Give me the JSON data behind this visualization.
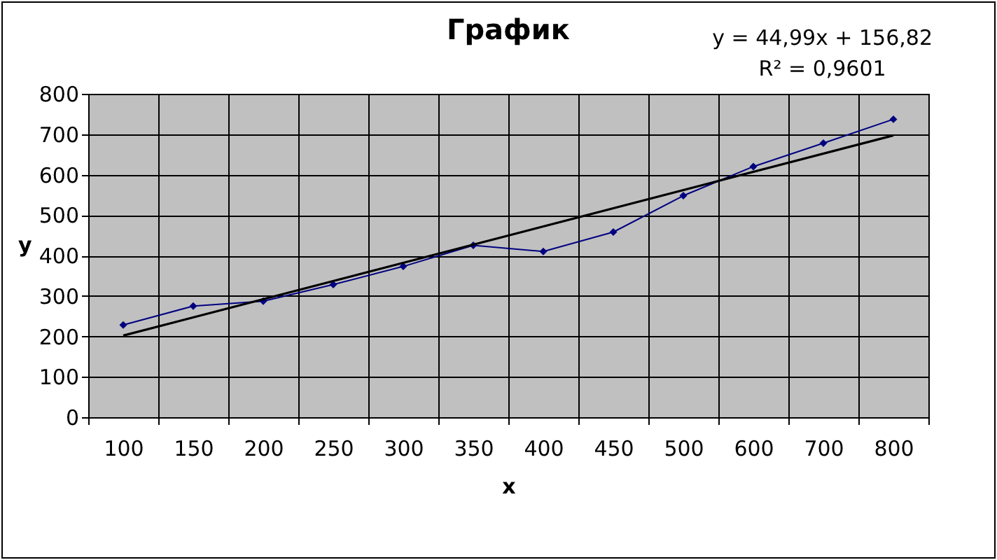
{
  "chart_data": {
    "type": "line",
    "title": "График",
    "xlabel": "x",
    "ylabel": "y",
    "annotations": [
      "y = 44,99x + 156,82",
      "R² = 0,9601"
    ],
    "categories": [
      "100",
      "150",
      "200",
      "250",
      "300",
      "350",
      "400",
      "450",
      "500",
      "600",
      "700",
      "800"
    ],
    "series": [
      {
        "color": "#000080",
        "marker": "diamond",
        "values": [
          228,
          275,
          287,
          328,
          373,
          425,
          410,
          458,
          548,
          620,
          678,
          737
        ]
      },
      {
        "type": "line",
        "color": "#000000",
        "marker": "none",
        "x": [
          "100",
          "800"
        ],
        "values": [
          202,
          697
        ]
      }
    ],
    "ylim": [
      0,
      800
    ],
    "yticks": [
      0,
      100,
      200,
      300,
      400,
      500,
      600,
      700,
      800
    ],
    "grid": true
  }
}
